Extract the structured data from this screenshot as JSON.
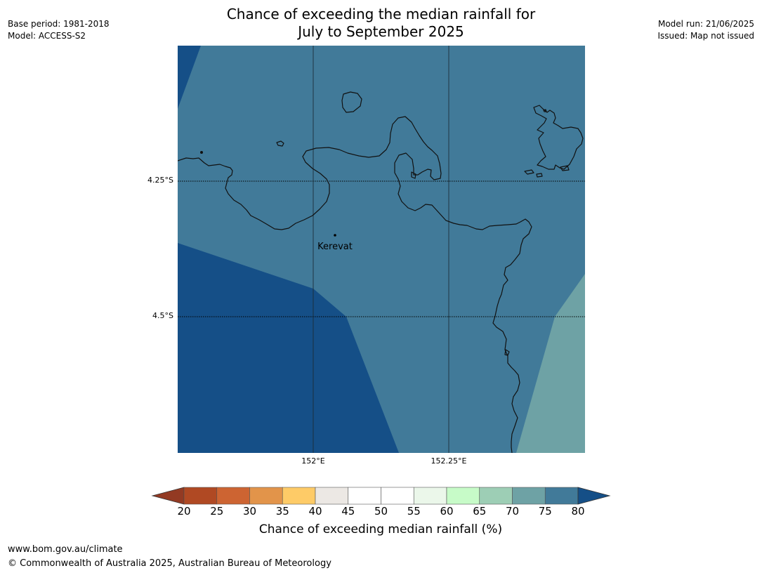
{
  "title": {
    "line1": "Chance of exceeding the median rainfall for",
    "line2": "July to September 2025"
  },
  "left_meta": {
    "base_period": "Base period: 1981-2018",
    "model": "Model: ACCESS-S2"
  },
  "right_meta": {
    "model_run": "Model run: 21/06/2025",
    "issued": "Issued: Map not issued"
  },
  "map": {
    "lat_labels": [
      "4.25°S",
      "4.5°S"
    ],
    "lon_labels": [
      "152°E",
      "152.25°E"
    ],
    "place": "Kerevat",
    "colors": {
      "band_70_75": "#6ea2a5",
      "band_75_80": "#417a99",
      "band_over_80": "#154f87"
    }
  },
  "colorbar": {
    "ticks": [
      "20",
      "25",
      "30",
      "35",
      "40",
      "45",
      "50",
      "55",
      "60",
      "65",
      "70",
      "75",
      "80"
    ],
    "colors": [
      "#b04923",
      "#cd6432",
      "#e2944a",
      "#fecb67",
      "#ece8e4",
      "#ffffff",
      "#ffffff",
      "#ebf7ea",
      "#c7fbc8",
      "#9dceb5",
      "#6ea2a5",
      "#417a99"
    ],
    "under_color": "#933a23",
    "over_color": "#154f87",
    "label": "Chance of exceeding median rainfall (%)"
  },
  "footer": {
    "url": "www.bom.gov.au/climate",
    "copyright": "© Commonwealth of Australia 2025, Australian Bureau of Meteorology"
  }
}
